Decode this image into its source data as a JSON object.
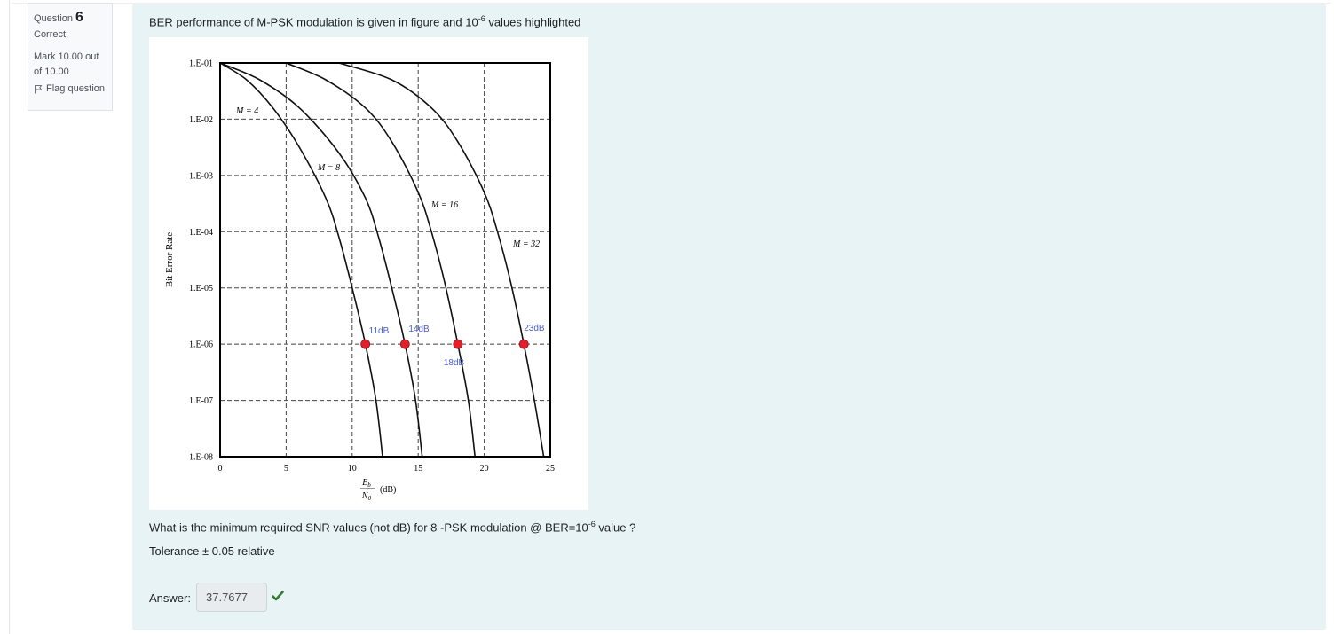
{
  "question_info": {
    "label": "Question",
    "number": "6",
    "state": "Correct",
    "grade": "Mark 10.00 out of 10.00",
    "flag_label": "Flag question"
  },
  "question": {
    "text_prefix": "BER performance of M-PSK modulation is given in figure and 10",
    "text_sup": "-6",
    "text_suffix": " values highlighted",
    "ask_prefix": "What is the minimum required SNR values (not dB) for 8 -PSK modulation @ BER=10",
    "ask_sup": "-6",
    "ask_suffix": " value ?",
    "tolerance": "Tolerance ± 0.05 relative",
    "answer_label": "Answer:",
    "answer_value": "37.7677"
  },
  "colors": {
    "marker": "#e0202a",
    "annotation": "#4a5dc8",
    "check": "#357a32"
  },
  "chart_data": {
    "type": "line",
    "xlabel_num": "E",
    "xlabel_num_sub": "b",
    "xlabel_den": "N",
    "xlabel_den_sub": "0",
    "xlabel_unit": "(dB)",
    "ylabel": "Bit Error Rate",
    "xlim": [
      0,
      25
    ],
    "ylim_log10": [
      -8,
      -1
    ],
    "x_ticks": [
      "0",
      "5",
      "10",
      "15",
      "20",
      "25"
    ],
    "y_ticks": [
      "1.E-01",
      "1.E-02",
      "1.E-03",
      "1.E-04",
      "1.E-05",
      "1.E-06",
      "1.E-07",
      "1.E-08"
    ],
    "grid": "dashed",
    "series": [
      {
        "name": "M = 4",
        "x": [
          0,
          2,
          4,
          6,
          8,
          9,
          10,
          11,
          11.8,
          12.3
        ],
        "y_log10": [
          -1.0,
          -1.3,
          -1.8,
          -2.5,
          -3.4,
          -4.1,
          -5.0,
          -6.0,
          -7.0,
          -8.0
        ]
      },
      {
        "name": "M = 8",
        "x": [
          0,
          3,
          6,
          9,
          11,
          12,
          13,
          14,
          14.8,
          15.3
        ],
        "y_log10": [
          -1.0,
          -1.3,
          -1.8,
          -2.6,
          -3.4,
          -4.1,
          -5.0,
          -6.0,
          -7.0,
          -8.0
        ]
      },
      {
        "name": "M = 16",
        "x": [
          5,
          8,
          11,
          13,
          15,
          16,
          17,
          18,
          18.8,
          19.3
        ],
        "y_log10": [
          -1.0,
          -1.3,
          -1.8,
          -2.4,
          -3.3,
          -4.0,
          -4.9,
          -6.0,
          -7.0,
          -8.0
        ]
      },
      {
        "name": "M = 32",
        "x": [
          9,
          13,
          16,
          18,
          20,
          21,
          22,
          23,
          23.8,
          24.5
        ],
        "y_log10": [
          -1.0,
          -1.3,
          -1.8,
          -2.4,
          -3.3,
          -4.0,
          -4.9,
          -6.0,
          -7.0,
          -8.0
        ]
      }
    ],
    "highlights": [
      {
        "x": 11,
        "y_log10": -6,
        "label": "11dB"
      },
      {
        "x": 14,
        "y_log10": -6,
        "label": "14dB"
      },
      {
        "x": 18,
        "y_log10": -6,
        "label": "18dB"
      },
      {
        "x": 23,
        "y_log10": -6,
        "label": "23dB"
      }
    ]
  }
}
